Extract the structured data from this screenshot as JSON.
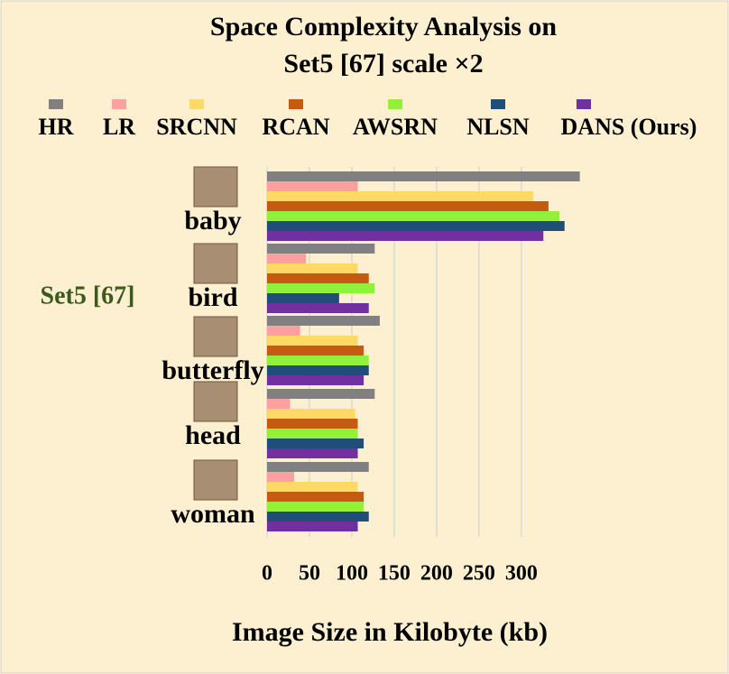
{
  "chart_data": {
    "type": "bar",
    "orientation": "horizontal",
    "title": [
      "Space Complexity Analysis on",
      "Set5 [67] scale ×2"
    ],
    "group_label": "Set5 [67]",
    "x_label": "Image Size in Kilobyte (kb)",
    "categories": [
      "baby",
      "bird",
      "butterfly",
      "head",
      "woman"
    ],
    "series": [
      {
        "name": "HR",
        "color": "#808080",
        "values": [
          369,
          127,
          133,
          127,
          120
        ]
      },
      {
        "name": "LR",
        "color": "#ff9f9f",
        "values": [
          107,
          46,
          39,
          27,
          32
        ]
      },
      {
        "name": "SRCNN",
        "color": "#ffd966",
        "values": [
          314,
          107,
          107,
          104,
          107
        ]
      },
      {
        "name": "RCAN",
        "color": "#c55a11",
        "values": [
          332,
          120,
          114,
          107,
          114
        ]
      },
      {
        "name": "AWSRN",
        "color": "#92f03a",
        "values": [
          345,
          127,
          120,
          107,
          114
        ]
      },
      {
        "name": "NLSN",
        "color": "#1f4e79",
        "values": [
          351,
          85,
          120,
          114,
          120
        ]
      },
      {
        "name": "DANS (Ours)",
        "color": "#7030a0",
        "values": [
          326,
          120,
          114,
          107,
          107
        ]
      }
    ],
    "xlim": [
      0,
      380
    ],
    "xticks": [
      0,
      50,
      100,
      150,
      200,
      250,
      300
    ],
    "grid": true
  }
}
